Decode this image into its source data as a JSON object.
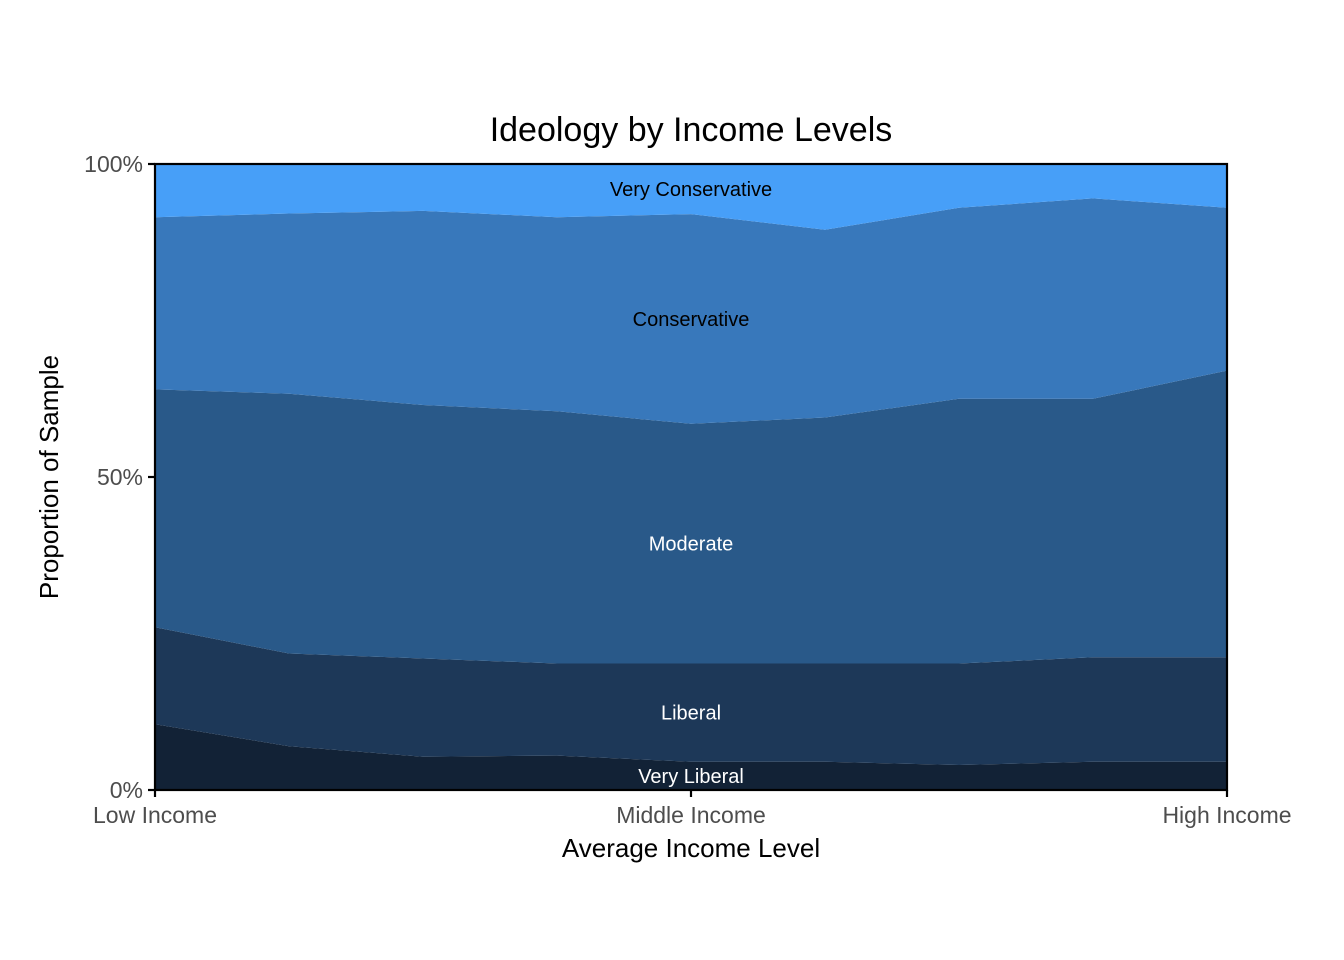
{
  "chart_data": {
    "type": "area",
    "stacked": true,
    "normalized": true,
    "title": "Ideology by Income Levels",
    "xlabel": "Average Income Level",
    "ylabel": "Proportion of Sample",
    "x_tick_labels": [
      "Low Income",
      "Middle Income",
      "High Income"
    ],
    "y_tick_labels": [
      "0%",
      "50%",
      "100%"
    ],
    "ylim": [
      0,
      1
    ],
    "grid": false,
    "legend": "none",
    "series": [
      {
        "name": "Very Liberal",
        "label_color": "#ffffff",
        "color": "#122236",
        "values": [
          0.105,
          0.07,
          0.053,
          0.055,
          0.045,
          0.045,
          0.04,
          0.045,
          0.045
        ]
      },
      {
        "name": "Liberal",
        "label_color": "#ffffff",
        "color": "#1d3858",
        "values": [
          0.155,
          0.148,
          0.157,
          0.147,
          0.157,
          0.157,
          0.162,
          0.167,
          0.167
        ]
      },
      {
        "name": "Moderate",
        "label_color": "#ffffff",
        "color": "#295989",
        "values": [
          0.38,
          0.415,
          0.405,
          0.403,
          0.383,
          0.393,
          0.423,
          0.413,
          0.458
        ]
      },
      {
        "name": "Conservative",
        "label_color": "#000000",
        "color": "#3878bb",
        "values": [
          0.275,
          0.288,
          0.31,
          0.31,
          0.335,
          0.3,
          0.305,
          0.32,
          0.26
        ]
      },
      {
        "name": "Very Conservative",
        "label_color": "#000000",
        "color": "#479ff8",
        "values": [
          0.085,
          0.079,
          0.075,
          0.085,
          0.08,
          0.085,
          0.07,
          0.055,
          0.07
        ]
      }
    ]
  }
}
